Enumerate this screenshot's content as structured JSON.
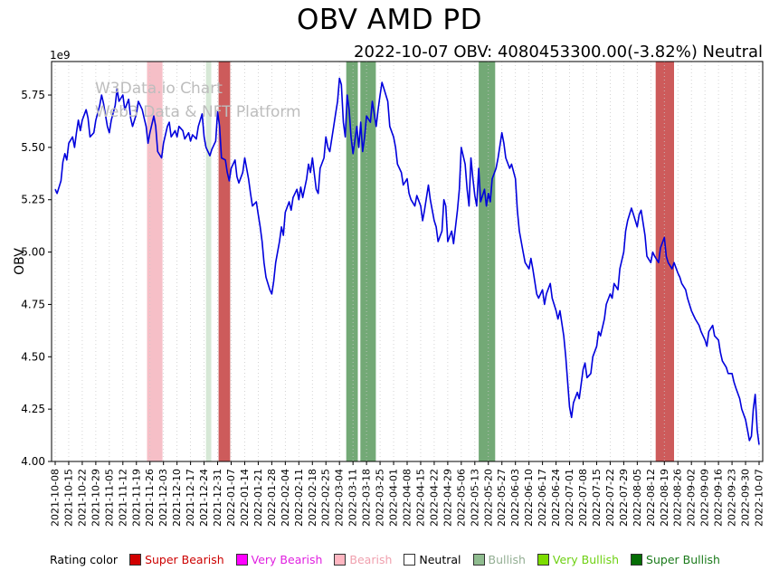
{
  "page": {
    "title": "OBV AMD PD",
    "subtitle": "2022-10-07 OBV: 4080453300.00(-3.82%) Neutral"
  },
  "watermark": {
    "line1": "W3Data.io Chart",
    "line2": "Web3 Data & NFT Platform"
  },
  "chart_data": {
    "type": "line",
    "title": "OBV AMD PD",
    "ylabel": "OBV",
    "y_offset_label": "1e9",
    "y_unit": 1000000000,
    "ylim": [
      4.0,
      5.91
    ],
    "yticks": [
      4.0,
      4.25,
      4.5,
      4.75,
      5.0,
      5.25,
      5.5,
      5.75
    ],
    "grid": "vertical-dotted",
    "x_tick_interval_days": 7,
    "x_tick_labels": [
      "2021-10-08",
      "2021-10-15",
      "2021-10-22",
      "2021-10-29",
      "2021-11-05",
      "2021-11-12",
      "2021-11-19",
      "2021-11-26",
      "2021-12-03",
      "2021-12-10",
      "2021-12-17",
      "2021-12-24",
      "2021-12-31",
      "2022-01-07",
      "2022-01-14",
      "2022-01-21",
      "2022-01-28",
      "2022-02-04",
      "2022-02-11",
      "2022-02-18",
      "2022-02-25",
      "2022-03-04",
      "2022-03-11",
      "2022-03-18",
      "2022-03-25",
      "2022-04-01",
      "2022-04-08",
      "2022-04-15",
      "2022-04-22",
      "2022-04-29",
      "2022-05-06",
      "2022-05-13",
      "2022-05-20",
      "2022-05-27",
      "2022-06-03",
      "2022-06-10",
      "2022-06-17",
      "2022-06-24",
      "2022-07-01",
      "2022-07-08",
      "2022-07-15",
      "2022-07-22",
      "2022-07-29",
      "2022-08-05",
      "2022-08-12",
      "2022-08-19",
      "2022-08-26",
      "2022-09-02",
      "2022-09-09",
      "2022-09-16",
      "2022-09-23",
      "2022-09-30",
      "2022-10-07"
    ],
    "bands": [
      {
        "rating": "Bearish",
        "color": "#f6bfc7",
        "start_day": 47.5,
        "end_day": 55.5
      },
      {
        "rating": "Bullish",
        "color": "#d6e8d6",
        "start_day": 78,
        "end_day": 80.7
      },
      {
        "rating": "Super Bearish",
        "color": "#cd5b5b",
        "start_day": 84.5,
        "end_day": 90.5
      },
      {
        "rating": "Super Bullish",
        "color": "#73a976",
        "start_day": 150.5,
        "end_day": 156.5
      },
      {
        "rating": "Super Bullish",
        "color": "#73a976",
        "start_day": 157.8,
        "end_day": 165.8
      },
      {
        "rating": "Super Bullish",
        "color": "#73a976",
        "start_day": 219,
        "end_day": 227.5
      },
      {
        "rating": "Super Bearish",
        "color": "#cd5b5b",
        "start_day": 310.5,
        "end_day": 320
      }
    ],
    "series": [
      {
        "name": "OBV",
        "color": "#0000dd",
        "points": [
          [
            0,
            5.3
          ],
          [
            1,
            5.28
          ],
          [
            3,
            5.34
          ],
          [
            4,
            5.43
          ],
          [
            5,
            5.47
          ],
          [
            6,
            5.44
          ],
          [
            7,
            5.52
          ],
          [
            9,
            5.55
          ],
          [
            10,
            5.5
          ],
          [
            11,
            5.57
          ],
          [
            12,
            5.63
          ],
          [
            13,
            5.58
          ],
          [
            14,
            5.63
          ],
          [
            16,
            5.68
          ],
          [
            17,
            5.64
          ],
          [
            18,
            5.55
          ],
          [
            20,
            5.57
          ],
          [
            21,
            5.63
          ],
          [
            23,
            5.7
          ],
          [
            24,
            5.75
          ],
          [
            25,
            5.71
          ],
          [
            27,
            5.6
          ],
          [
            28,
            5.57
          ],
          [
            29,
            5.63
          ],
          [
            31,
            5.7
          ],
          [
            32,
            5.78
          ],
          [
            33,
            5.72
          ],
          [
            35,
            5.75
          ],
          [
            36,
            5.68
          ],
          [
            38,
            5.73
          ],
          [
            39,
            5.64
          ],
          [
            40,
            5.6
          ],
          [
            42,
            5.66
          ],
          [
            43,
            5.72
          ],
          [
            45,
            5.68
          ],
          [
            46,
            5.64
          ],
          [
            47,
            5.6
          ],
          [
            48,
            5.52
          ],
          [
            49,
            5.57
          ],
          [
            51,
            5.65
          ],
          [
            52,
            5.6
          ],
          [
            53,
            5.48
          ],
          [
            55,
            5.45
          ],
          [
            56,
            5.52
          ],
          [
            58,
            5.6
          ],
          [
            59,
            5.62
          ],
          [
            60,
            5.55
          ],
          [
            62,
            5.58
          ],
          [
            63,
            5.55
          ],
          [
            64,
            5.6
          ],
          [
            66,
            5.58
          ],
          [
            67,
            5.54
          ],
          [
            69,
            5.57
          ],
          [
            70,
            5.53
          ],
          [
            71,
            5.56
          ],
          [
            73,
            5.54
          ],
          [
            74,
            5.6
          ],
          [
            76,
            5.66
          ],
          [
            77,
            5.55
          ],
          [
            78,
            5.5
          ],
          [
            80,
            5.46
          ],
          [
            81,
            5.49
          ],
          [
            83,
            5.53
          ],
          [
            84,
            5.67
          ],
          [
            85,
            5.6
          ],
          [
            86,
            5.45
          ],
          [
            88,
            5.44
          ],
          [
            89,
            5.38
          ],
          [
            90,
            5.34
          ],
          [
            91,
            5.4
          ],
          [
            93,
            5.44
          ],
          [
            94,
            5.36
          ],
          [
            95,
            5.33
          ],
          [
            97,
            5.38
          ],
          [
            98,
            5.45
          ],
          [
            100,
            5.35
          ],
          [
            101,
            5.28
          ],
          [
            102,
            5.22
          ],
          [
            104,
            5.24
          ],
          [
            105,
            5.18
          ],
          [
            106,
            5.12
          ],
          [
            107,
            5.05
          ],
          [
            108,
            4.95
          ],
          [
            109,
            4.88
          ],
          [
            111,
            4.82
          ],
          [
            112,
            4.8
          ],
          [
            113,
            4.86
          ],
          [
            114,
            4.95
          ],
          [
            116,
            5.05
          ],
          [
            117,
            5.12
          ],
          [
            118,
            5.08
          ],
          [
            119,
            5.19
          ],
          [
            121,
            5.24
          ],
          [
            122,
            5.2
          ],
          [
            123,
            5.26
          ],
          [
            125,
            5.3
          ],
          [
            126,
            5.25
          ],
          [
            127,
            5.31
          ],
          [
            128,
            5.26
          ],
          [
            130,
            5.35
          ],
          [
            131,
            5.42
          ],
          [
            132,
            5.38
          ],
          [
            133,
            5.45
          ],
          [
            135,
            5.3
          ],
          [
            136,
            5.28
          ],
          [
            137,
            5.4
          ],
          [
            139,
            5.45
          ],
          [
            140,
            5.55
          ],
          [
            141,
            5.5
          ],
          [
            142,
            5.48
          ],
          [
            144,
            5.6
          ],
          [
            145,
            5.66
          ],
          [
            146,
            5.72
          ],
          [
            147,
            5.83
          ],
          [
            148,
            5.8
          ],
          [
            149,
            5.62
          ],
          [
            150,
            5.55
          ],
          [
            151,
            5.75
          ],
          [
            152,
            5.68
          ],
          [
            153,
            5.55
          ],
          [
            154,
            5.47
          ],
          [
            156,
            5.6
          ],
          [
            157,
            5.5
          ],
          [
            158,
            5.62
          ],
          [
            159,
            5.48
          ],
          [
            160,
            5.55
          ],
          [
            161,
            5.65
          ],
          [
            163,
            5.62
          ],
          [
            164,
            5.72
          ],
          [
            165,
            5.66
          ],
          [
            166,
            5.6
          ],
          [
            167,
            5.68
          ],
          [
            168,
            5.75
          ],
          [
            169,
            5.81
          ],
          [
            170,
            5.78
          ],
          [
            172,
            5.72
          ],
          [
            173,
            5.6
          ],
          [
            175,
            5.55
          ],
          [
            176,
            5.5
          ],
          [
            177,
            5.42
          ],
          [
            179,
            5.38
          ],
          [
            180,
            5.32
          ],
          [
            182,
            5.35
          ],
          [
            183,
            5.28
          ],
          [
            184,
            5.25
          ],
          [
            186,
            5.22
          ],
          [
            187,
            5.27
          ],
          [
            189,
            5.22
          ],
          [
            190,
            5.15
          ],
          [
            191,
            5.2
          ],
          [
            193,
            5.32
          ],
          [
            194,
            5.25
          ],
          [
            196,
            5.15
          ],
          [
            197,
            5.12
          ],
          [
            198,
            5.05
          ],
          [
            200,
            5.1
          ],
          [
            201,
            5.25
          ],
          [
            202,
            5.22
          ],
          [
            203,
            5.05
          ],
          [
            205,
            5.1
          ],
          [
            206,
            5.04
          ],
          [
            208,
            5.2
          ],
          [
            209,
            5.3
          ],
          [
            210,
            5.5
          ],
          [
            212,
            5.42
          ],
          [
            213,
            5.3
          ],
          [
            214,
            5.22
          ],
          [
            215,
            5.45
          ],
          [
            216,
            5.35
          ],
          [
            217,
            5.27
          ],
          [
            218,
            5.22
          ],
          [
            219,
            5.4
          ],
          [
            220,
            5.24
          ],
          [
            222,
            5.3
          ],
          [
            223,
            5.22
          ],
          [
            224,
            5.28
          ],
          [
            225,
            5.24
          ],
          [
            226,
            5.35
          ],
          [
            228,
            5.4
          ],
          [
            229,
            5.45
          ],
          [
            231,
            5.57
          ],
          [
            232,
            5.52
          ],
          [
            233,
            5.45
          ],
          [
            235,
            5.4
          ],
          [
            236,
            5.42
          ],
          [
            238,
            5.35
          ],
          [
            239,
            5.2
          ],
          [
            240,
            5.1
          ],
          [
            242,
            5.0
          ],
          [
            243,
            4.95
          ],
          [
            245,
            4.92
          ],
          [
            246,
            4.97
          ],
          [
            247,
            4.92
          ],
          [
            249,
            4.8
          ],
          [
            250,
            4.78
          ],
          [
            252,
            4.82
          ],
          [
            253,
            4.75
          ],
          [
            254,
            4.8
          ],
          [
            256,
            4.85
          ],
          [
            257,
            4.78
          ],
          [
            259,
            4.72
          ],
          [
            260,
            4.68
          ],
          [
            261,
            4.72
          ],
          [
            263,
            4.6
          ],
          [
            264,
            4.5
          ],
          [
            265,
            4.38
          ],
          [
            266,
            4.26
          ],
          [
            267,
            4.21
          ],
          [
            268,
            4.28
          ],
          [
            270,
            4.33
          ],
          [
            271,
            4.3
          ],
          [
            273,
            4.44
          ],
          [
            274,
            4.47
          ],
          [
            275,
            4.4
          ],
          [
            277,
            4.42
          ],
          [
            278,
            4.5
          ],
          [
            280,
            4.55
          ],
          [
            281,
            4.62
          ],
          [
            282,
            4.6
          ],
          [
            284,
            4.68
          ],
          [
            285,
            4.75
          ],
          [
            287,
            4.8
          ],
          [
            288,
            4.78
          ],
          [
            289,
            4.85
          ],
          [
            291,
            4.82
          ],
          [
            292,
            4.92
          ],
          [
            294,
            5.0
          ],
          [
            295,
            5.1
          ],
          [
            296,
            5.15
          ],
          [
            298,
            5.21
          ],
          [
            299,
            5.18
          ],
          [
            301,
            5.12
          ],
          [
            302,
            5.18
          ],
          [
            303,
            5.2
          ],
          [
            305,
            5.08
          ],
          [
            306,
            4.98
          ],
          [
            308,
            4.95
          ],
          [
            309,
            5.0
          ],
          [
            310,
            4.98
          ],
          [
            312,
            4.95
          ],
          [
            313,
            5.02
          ],
          [
            315,
            5.07
          ],
          [
            316,
            4.98
          ],
          [
            317,
            4.95
          ],
          [
            319,
            4.92
          ],
          [
            320,
            4.95
          ],
          [
            322,
            4.9
          ],
          [
            323,
            4.88
          ],
          [
            324,
            4.85
          ],
          [
            326,
            4.82
          ],
          [
            327,
            4.78
          ],
          [
            329,
            4.72
          ],
          [
            330,
            4.7
          ],
          [
            331,
            4.68
          ],
          [
            333,
            4.65
          ],
          [
            334,
            4.62
          ],
          [
            336,
            4.58
          ],
          [
            337,
            4.55
          ],
          [
            338,
            4.62
          ],
          [
            340,
            4.65
          ],
          [
            341,
            4.6
          ],
          [
            343,
            4.58
          ],
          [
            344,
            4.52
          ],
          [
            345,
            4.48
          ],
          [
            347,
            4.45
          ],
          [
            348,
            4.42
          ],
          [
            350,
            4.42
          ],
          [
            351,
            4.38
          ],
          [
            352,
            4.35
          ],
          [
            354,
            4.3
          ],
          [
            355,
            4.25
          ],
          [
            357,
            4.2
          ],
          [
            358,
            4.15
          ],
          [
            359,
            4.1
          ],
          [
            360,
            4.12
          ],
          [
            361,
            4.25
          ],
          [
            362,
            4.32
          ],
          [
            363,
            4.15
          ],
          [
            364,
            4.08
          ]
        ]
      }
    ]
  },
  "legend": {
    "label": "Rating color",
    "items": [
      {
        "label": "Super Bearish",
        "swatch": "#d10000",
        "text_color": "#cc0000"
      },
      {
        "label": "Very Bearish",
        "swatch": "#ff00ff",
        "text_color": "#e020e0"
      },
      {
        "label": "Bearish",
        "swatch": "#ffb6c1",
        "text_color": "#f0a0ae"
      },
      {
        "label": "Neutral",
        "swatch": "#ffffff",
        "text_color": "#000000"
      },
      {
        "label": "Bullish",
        "swatch": "#8fbc8f",
        "text_color": "#93ae93"
      },
      {
        "label": "Very Bullish",
        "swatch": "#7cdc00",
        "text_color": "#6ed012"
      },
      {
        "label": "Super Bullish",
        "swatch": "#056d05",
        "text_color": "#1a7a1a"
      }
    ]
  }
}
